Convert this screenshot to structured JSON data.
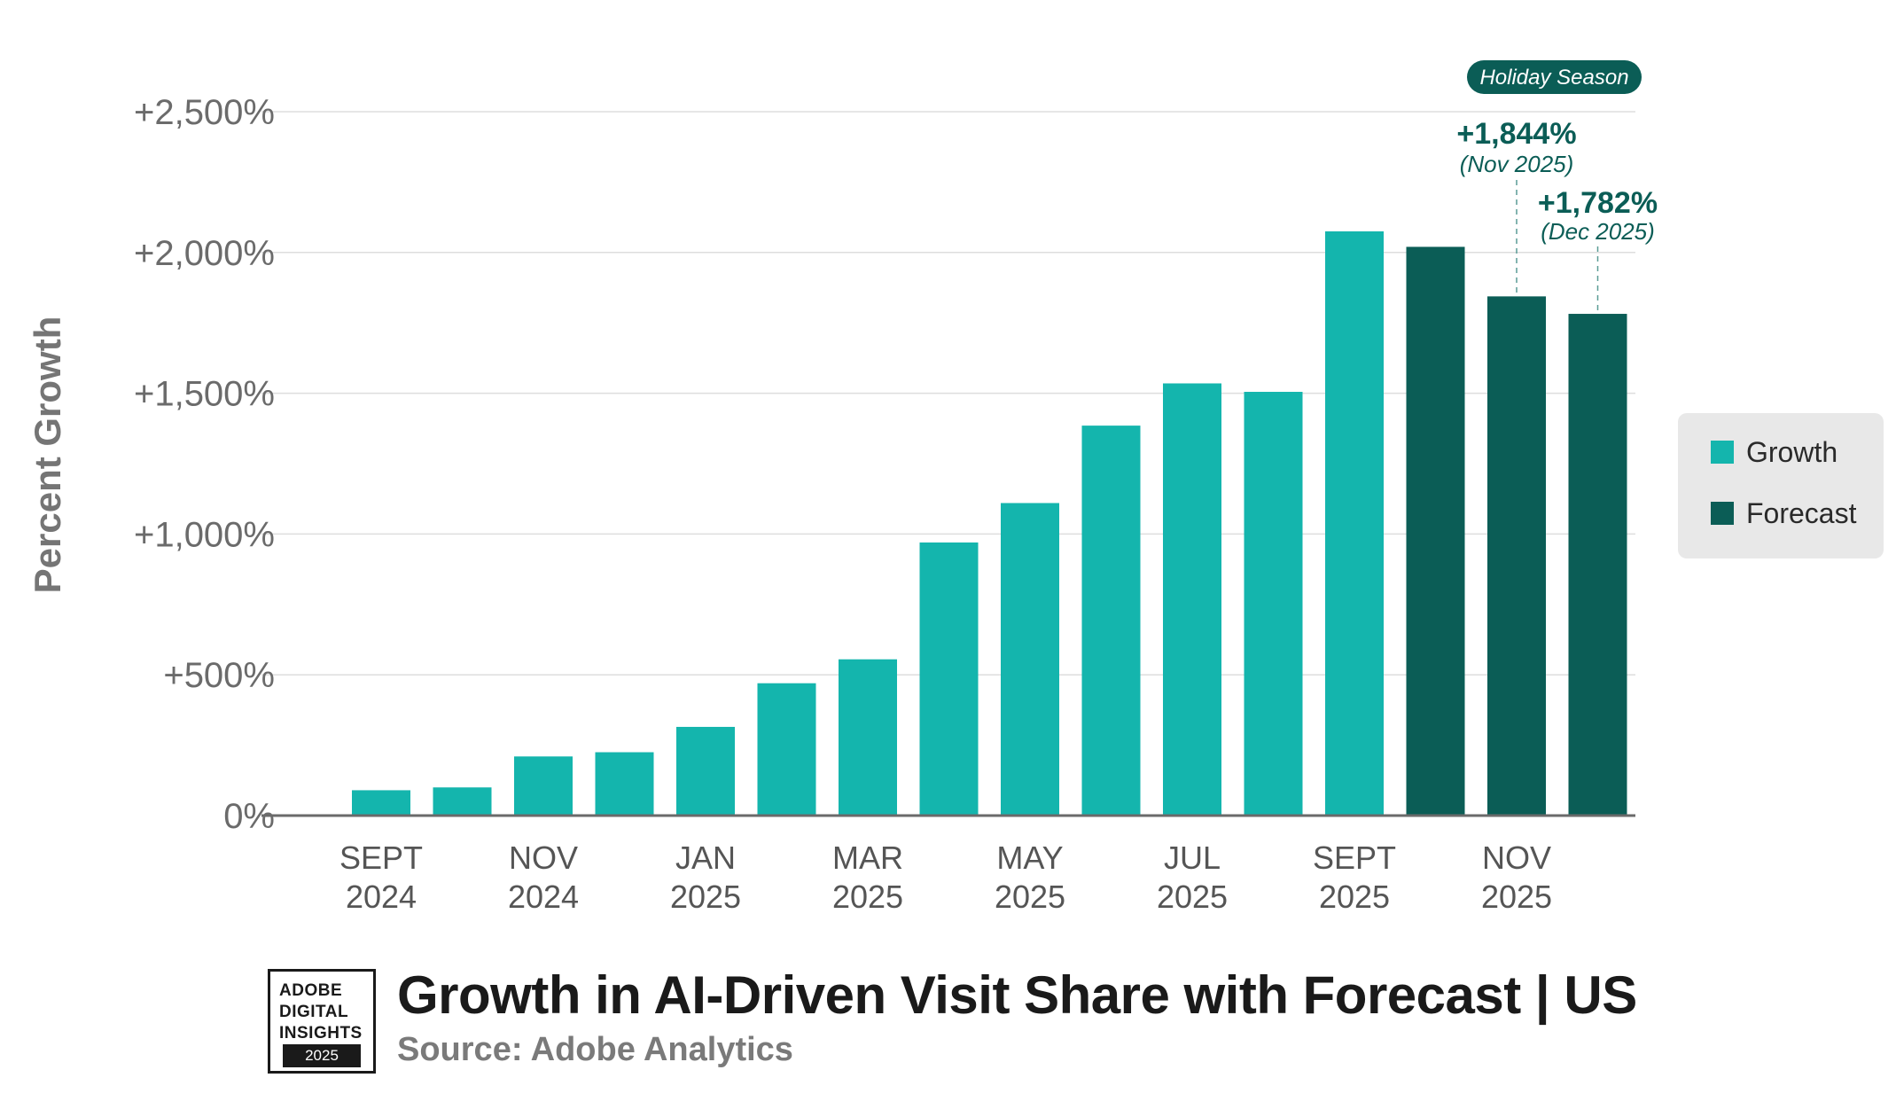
{
  "chart_data": {
    "type": "bar",
    "title": "Growth in AI-Driven Visit Share with Forecast | US",
    "source": "Source: Adobe Analytics",
    "ylabel": "Percent Growth",
    "xlabel": "",
    "ylim": [
      0,
      2500
    ],
    "y_ticks": [
      {
        "value": 0,
        "label": "0%"
      },
      {
        "value": 500,
        "label": "+500%"
      },
      {
        "value": 1000,
        "label": "+1,000%"
      },
      {
        "value": 1500,
        "label": "+1,500%"
      },
      {
        "value": 2000,
        "label": "+2,000%"
      },
      {
        "value": 2500,
        "label": "+2,500%"
      }
    ],
    "grid": true,
    "categories": [
      "Sept 2024",
      "Oct 2024",
      "Nov 2024",
      "Dec 2024",
      "Jan 2025",
      "Feb 2025",
      "Mar 2025",
      "Apr 2025",
      "May 2025",
      "Jun 2025",
      "Jul 2025",
      "Aug 2025",
      "Sept 2025",
      "Oct 2025",
      "Nov 2025",
      "Dec 2025"
    ],
    "x_tick_labels": [
      {
        "index": 0,
        "line1": "SEPT",
        "line2": "2024"
      },
      {
        "index": 2,
        "line1": "NOV",
        "line2": "2024"
      },
      {
        "index": 4,
        "line1": "JAN",
        "line2": "2025"
      },
      {
        "index": 6,
        "line1": "MAR",
        "line2": "2025"
      },
      {
        "index": 8,
        "line1": "MAY",
        "line2": "2025"
      },
      {
        "index": 10,
        "line1": "JUL",
        "line2": "2025"
      },
      {
        "index": 12,
        "line1": "SEPT",
        "line2": "2025"
      },
      {
        "index": 14,
        "line1": "NOV",
        "line2": "2025"
      }
    ],
    "series": [
      {
        "name": "Growth",
        "color": "#14b5ad",
        "values": [
          90,
          100,
          210,
          225,
          315,
          470,
          555,
          970,
          1110,
          1385,
          1535,
          1505,
          2075,
          null,
          null,
          null
        ]
      },
      {
        "name": "Forecast",
        "color": "#0b5d56",
        "values": [
          null,
          null,
          null,
          null,
          null,
          null,
          null,
          null,
          null,
          null,
          null,
          null,
          null,
          2020,
          1844,
          1782
        ]
      }
    ],
    "annotations": [
      {
        "index": 14,
        "value_label": "+1,844%",
        "date_label": "(Nov 2025)"
      },
      {
        "index": 15,
        "value_label": "+1,782%",
        "date_label": "(Dec 2025)"
      }
    ],
    "badge": {
      "label": "Holiday Season"
    },
    "legend": {
      "position": "right",
      "items": [
        {
          "label": "Growth",
          "color": "#14b5ad"
        },
        {
          "label": "Forecast",
          "color": "#0b5d56"
        }
      ]
    }
  },
  "logo": {
    "lines": [
      "ADOBE",
      "DIGITAL",
      "INSIGHTS"
    ],
    "year": "2025"
  }
}
